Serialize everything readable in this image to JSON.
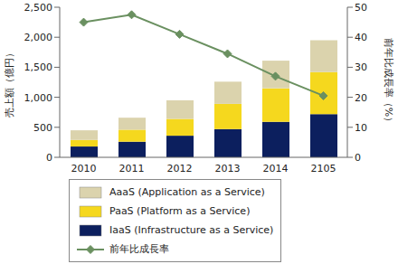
{
  "chart_data": {
    "type": "bar",
    "stacked": true,
    "categories": [
      "2010",
      "2011",
      "2012",
      "2013",
      "2014",
      "2105"
    ],
    "series": [
      {
        "name": "IaaS (Infrastructure as a Service)",
        "color": "#0c1f5e",
        "values": [
          180,
          260,
          360,
          470,
          590,
          720
        ]
      },
      {
        "name": "PaaS (Platform as a Service)",
        "color": "#f5d81e",
        "values": [
          110,
          200,
          280,
          420,
          560,
          700
        ]
      },
      {
        "name": "AaaS (Application as a Service)",
        "color": "#dbd3ad",
        "values": [
          160,
          200,
          310,
          370,
          460,
          530
        ]
      },
      {
        "name": "前年比成長率",
        "type": "line",
        "axis": "y2",
        "color": "#6a9060",
        "marker": "diamond",
        "values": [
          45,
          47.5,
          41,
          34.5,
          27,
          20.5
        ]
      }
    ],
    "ylabel": "売上額（億円）",
    "y2label": "前年比成長率（%）",
    "ylim": [
      0,
      2500
    ],
    "yticks": [
      0,
      500,
      {
        "value": 1000,
        "label": "1,000"
      },
      {
        "value": 1500,
        "label": "1,500"
      },
      {
        "value": 2000,
        "label": "2,000"
      },
      {
        "value": 2500,
        "label": "2,500"
      }
    ],
    "y2lim": [
      0,
      50
    ],
    "y2ticks": [
      0,
      10,
      20,
      30,
      40,
      50
    ],
    "legend": "bottom",
    "grid": false
  }
}
